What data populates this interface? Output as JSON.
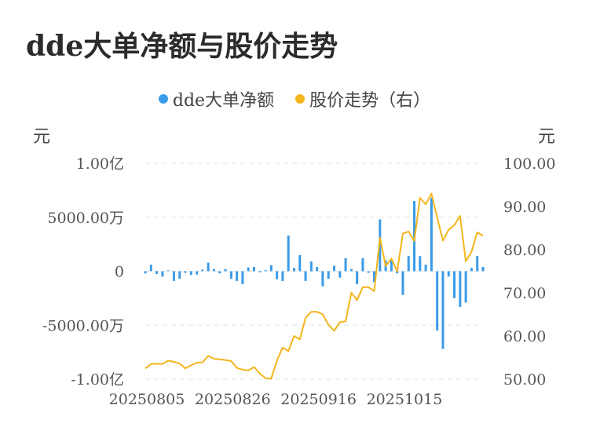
{
  "title": "dde大单净额与股价走势",
  "legend": {
    "left_series": "dde大单净额",
    "right_series": "股价走势（右）"
  },
  "units": {
    "left": "元",
    "right": "元"
  },
  "colors": {
    "bar": "#3a9be8",
    "line": "#f3b51c",
    "grid": "#e3e3e3"
  },
  "chart_data": {
    "type": "bar+line",
    "title": "dde大单净额与股价走势",
    "x_tick_labels": [
      "20250805",
      "20250826",
      "20250916",
      "20251015"
    ],
    "x_tick_indices": [
      0,
      15,
      30,
      45
    ],
    "left_axis": {
      "unit": "元",
      "range_wan": [
        -10000,
        10000
      ],
      "ticks": [
        {
          "value": 10000,
          "label": "1.00亿"
        },
        {
          "value": 5000,
          "label": "5000.00万"
        },
        {
          "value": 0,
          "label": "0"
        },
        {
          "value": -5000,
          "label": "-5000.00万"
        },
        {
          "value": -10000,
          "label": "-1.00亿"
        }
      ]
    },
    "right_axis": {
      "unit": "元",
      "range": [
        50,
        100
      ],
      "ticks": [
        {
          "value": 100,
          "label": "100.00"
        },
        {
          "value": 90,
          "label": "90.00"
        },
        {
          "value": 80,
          "label": "80.00"
        },
        {
          "value": 70,
          "label": "70.00"
        },
        {
          "value": 60,
          "label": "60.00"
        },
        {
          "value": 50,
          "label": "50.00"
        }
      ]
    },
    "grid": true,
    "legend_position": "top-center",
    "series": [
      {
        "name": "dde大单净额",
        "type": "bar",
        "axis": "left",
        "unit": "万元",
        "values": [
          -200,
          600,
          -250,
          -500,
          80,
          -900,
          -700,
          -150,
          -350,
          -300,
          150,
          800,
          200,
          -200,
          200,
          -700,
          -900,
          -1200,
          350,
          400,
          -100,
          100,
          550,
          -750,
          -900,
          3300,
          300,
          1500,
          -900,
          900,
          400,
          -1400,
          -700,
          500,
          -600,
          1200,
          200,
          -1200,
          1200,
          -150,
          -1000,
          4800,
          1000,
          1000,
          -200,
          -2200,
          1400,
          6500,
          1400,
          600,
          6800,
          -5500,
          -7200,
          -500,
          -2500,
          -3300,
          -2900,
          300,
          1400,
          400
        ]
      },
      {
        "name": "股价走势（右）",
        "type": "line",
        "axis": "right",
        "values": [
          52.5,
          53.5,
          53.6,
          53.5,
          54.3,
          54.0,
          53.6,
          52.5,
          53.2,
          53.8,
          53.9,
          55.4,
          54.7,
          54.6,
          54.4,
          54.2,
          52.6,
          52.2,
          52.0,
          52.8,
          51.3,
          50.2,
          50.1,
          54.3,
          57.3,
          56.5,
          60.0,
          59.2,
          64.2,
          65.6,
          65.6,
          65.0,
          62.6,
          61.2,
          63.2,
          63.4,
          70.0,
          68.3,
          71.3,
          71.3,
          70.4,
          82.8,
          76.2,
          77.9,
          75.0,
          83.7,
          84.2,
          82.0,
          92.0,
          90.5,
          93.0,
          87.4,
          82.1,
          84.6,
          85.7,
          87.8,
          77.3,
          79.5,
          84.0,
          83.2
        ]
      }
    ]
  }
}
